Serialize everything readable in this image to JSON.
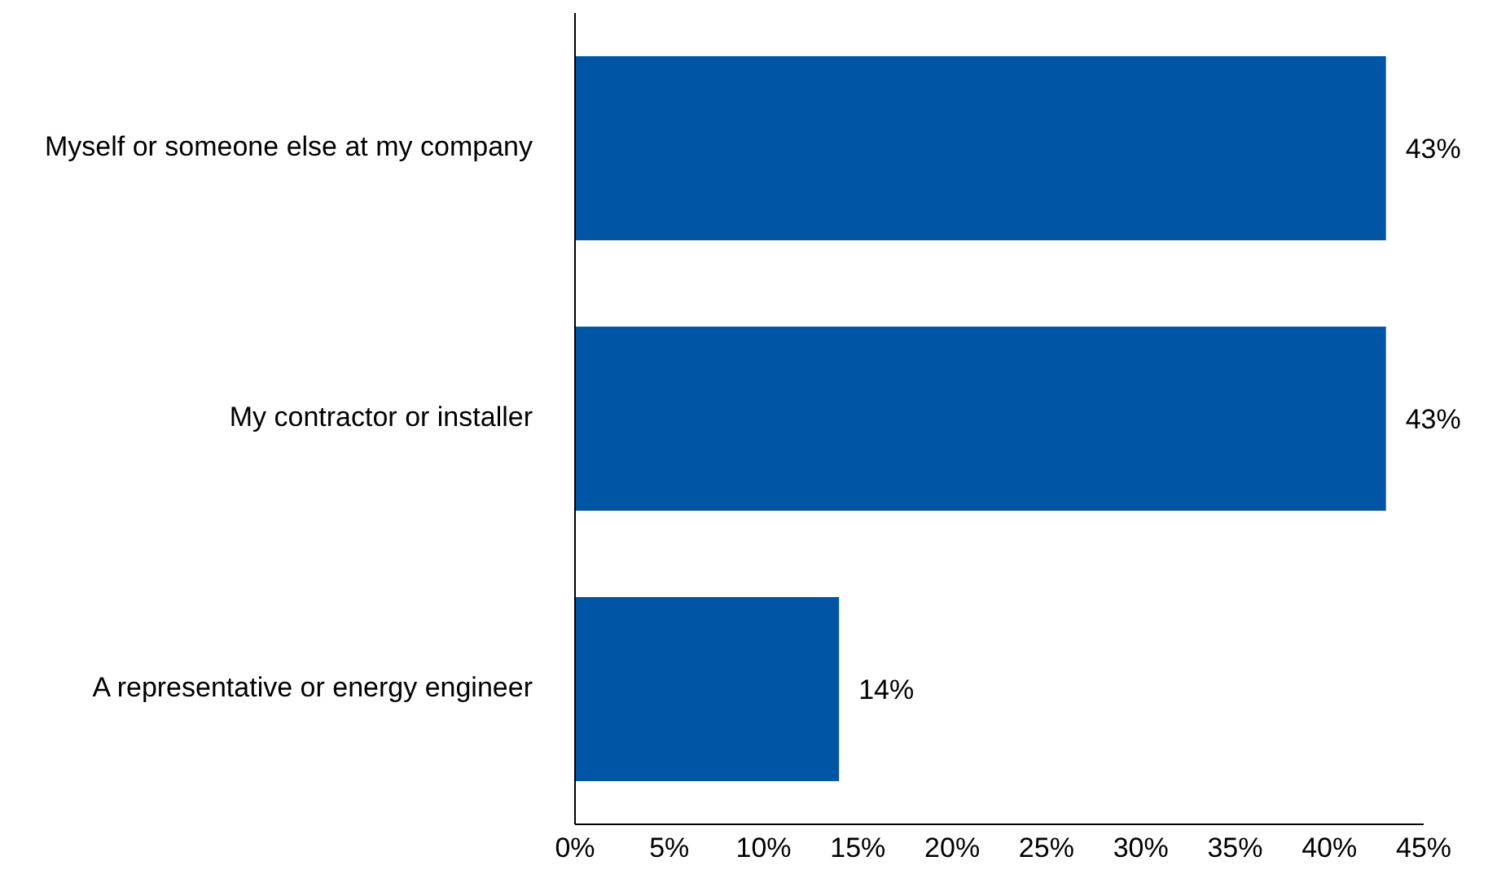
{
  "chart_data": {
    "type": "bar",
    "orientation": "horizontal",
    "categories": [
      "Myself or someone else at my company",
      "My contractor or installer",
      "A representative or energy engineer"
    ],
    "values": [
      43,
      43,
      14
    ],
    "color": "#0055a5",
    "value_labels": [
      "43%",
      "43%",
      "14%"
    ],
    "xlim": [
      0,
      45
    ],
    "xticks": [
      {
        "value": 0,
        "label": "0%"
      },
      {
        "value": 5,
        "label": "5%"
      },
      {
        "value": 10,
        "label": "10%"
      },
      {
        "value": 15,
        "label": "15%"
      },
      {
        "value": 20,
        "label": "20%"
      },
      {
        "value": 25,
        "label": "25%"
      },
      {
        "value": 30,
        "label": "30%"
      },
      {
        "value": 35,
        "label": "35%"
      },
      {
        "value": 40,
        "label": "40%"
      },
      {
        "value": 45,
        "label": "45%"
      }
    ],
    "grid": false,
    "legend": false
  }
}
